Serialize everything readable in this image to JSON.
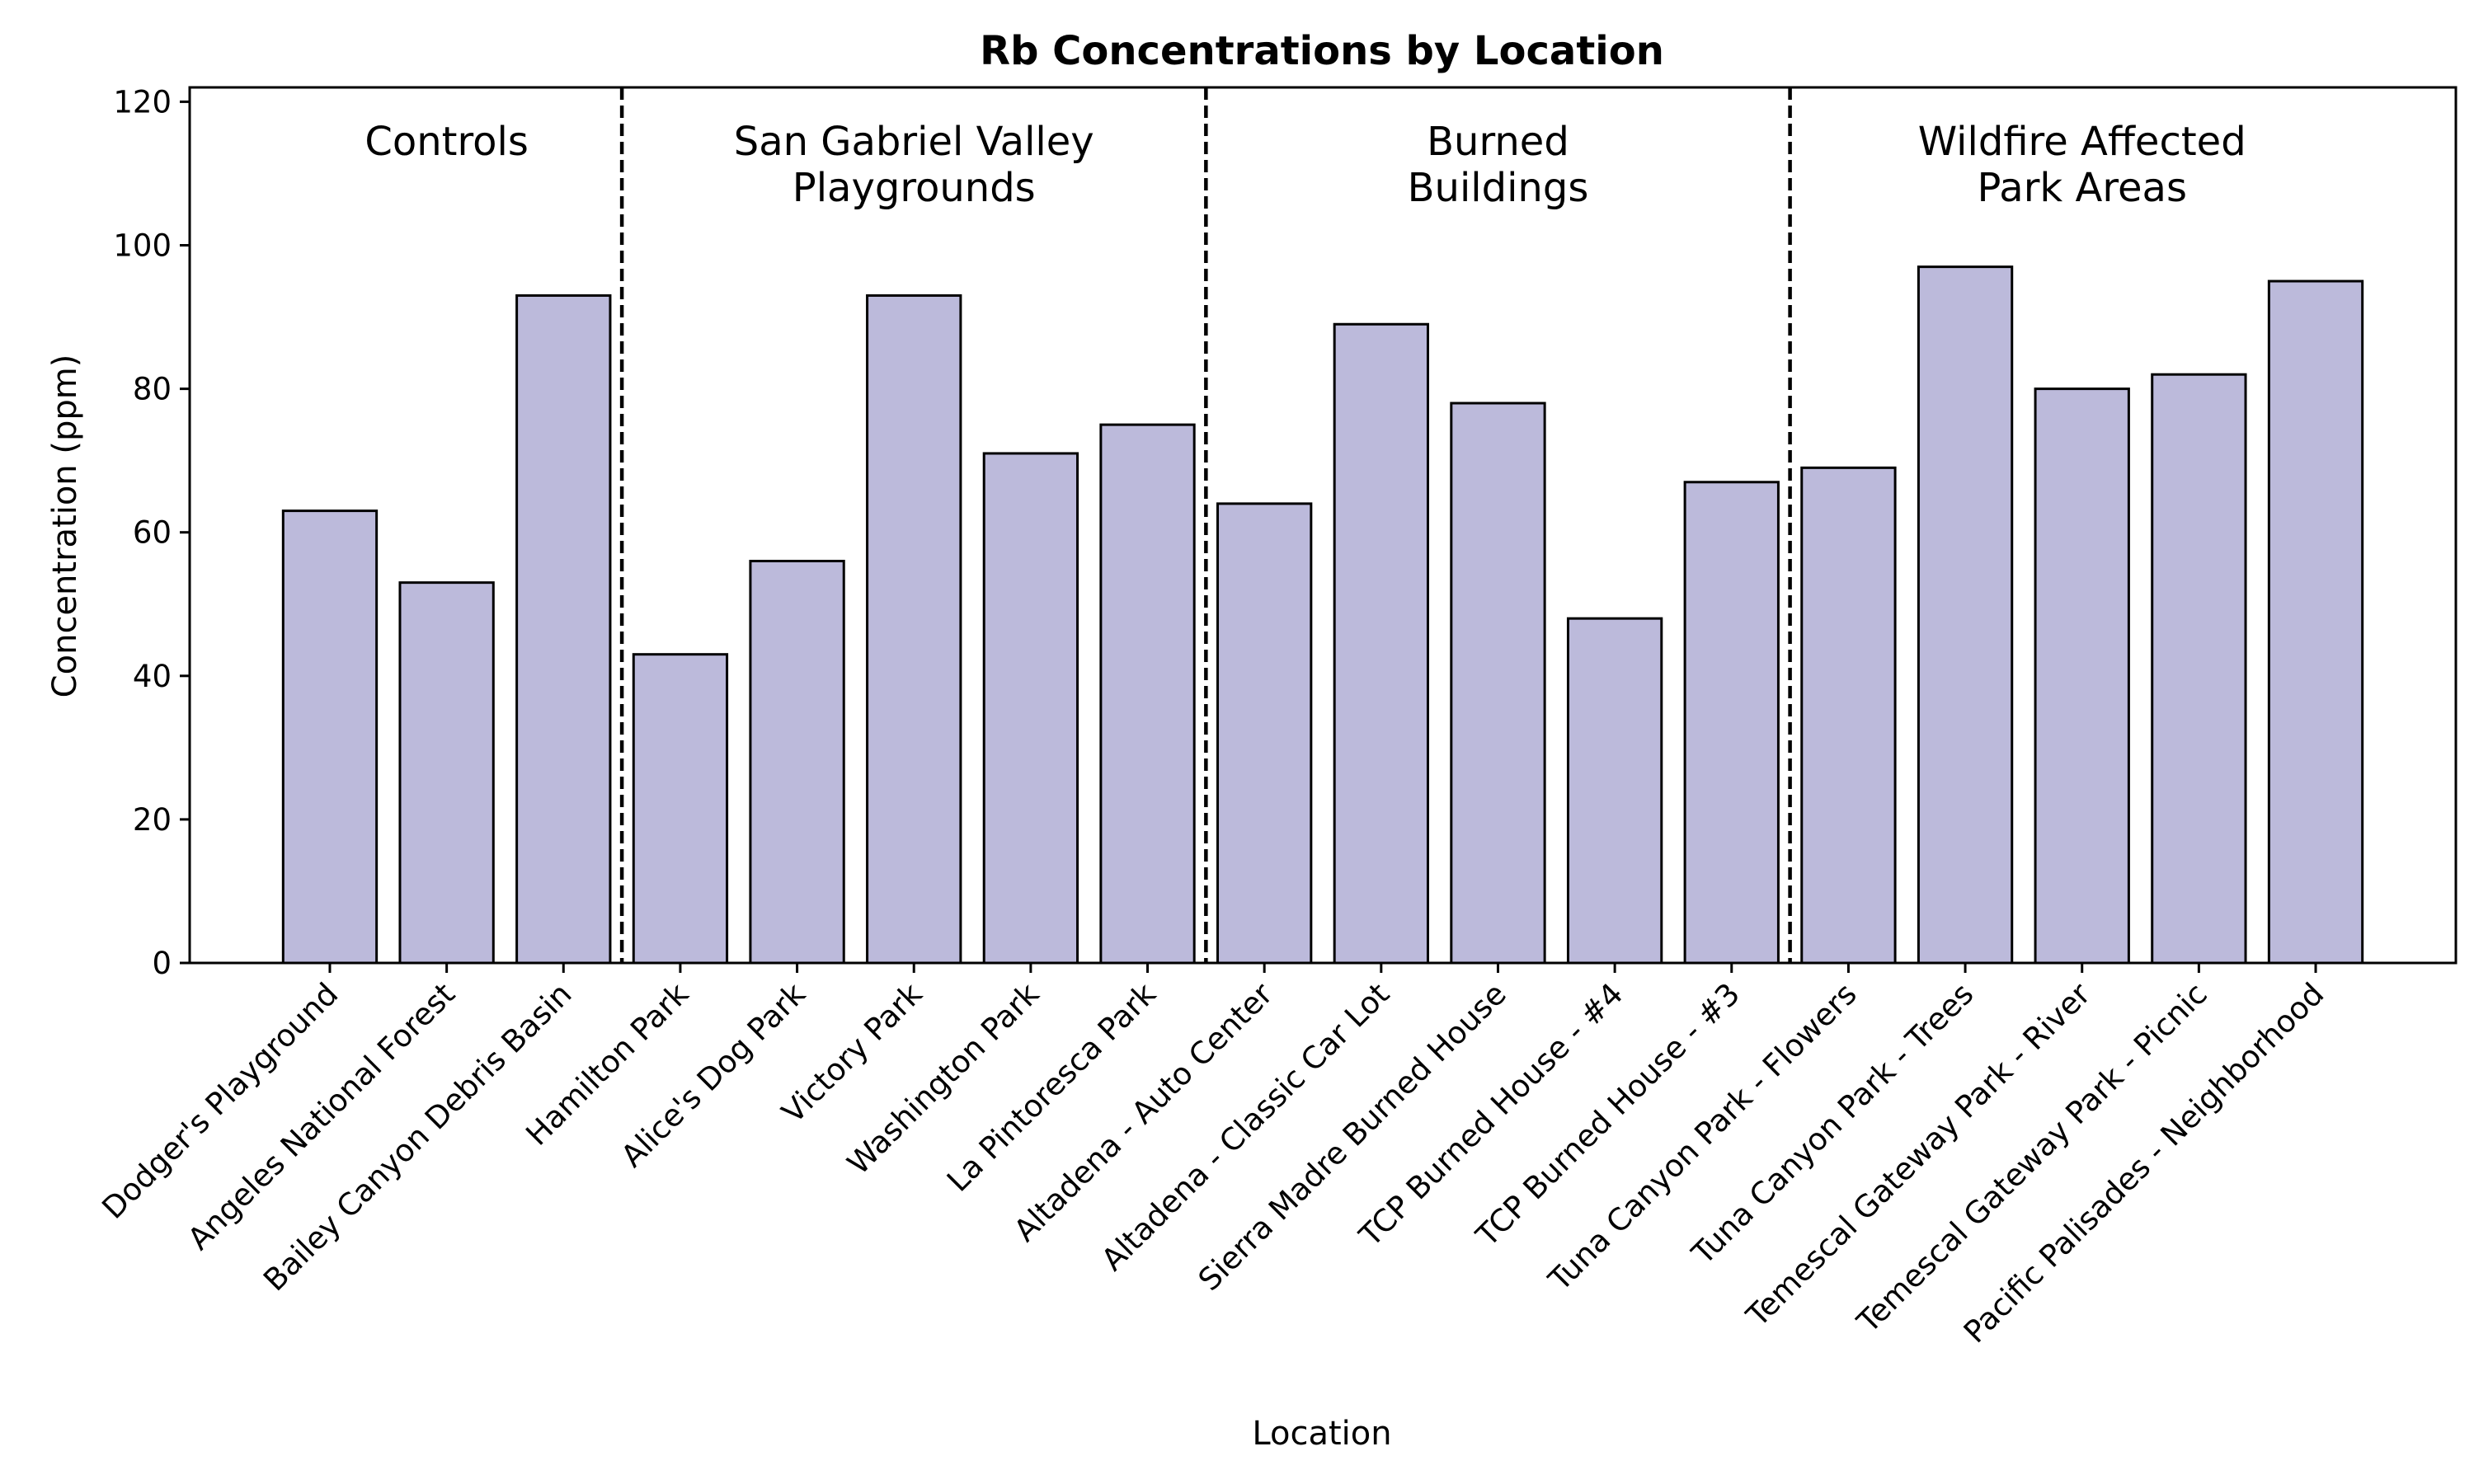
{
  "chart_data": {
    "type": "bar",
    "title": "Rb Concentrations by Location",
    "xlabel": "Location",
    "ylabel": "Concentration (ppm)",
    "ylim": [
      0,
      122
    ],
    "yticks": [
      0,
      20,
      40,
      60,
      80,
      100,
      120
    ],
    "grid": false,
    "bar_color": "#bcbadb",
    "bar_edge_color": "#000000",
    "categories": [
      "Dodger's Playground",
      "Angeles National Forest",
      "Bailey Canyon Debris Basin",
      "Hamilton Park",
      "Alice's Dog Park",
      "Victory Park",
      "Washington Park",
      "La Pintoresca Park",
      "Altadena - Auto Center",
      "Altadena - Classic Car Lot",
      "Sierra Madre Burned House",
      "TCP Burned House - #4",
      "TCP Burned House - #3",
      "Tuna Canyon Park - Flowers",
      "Tuna Canyon Park - Trees",
      "Temescal Gateway Park - River",
      "Temescal Gateway Park - Picnic",
      "Pacific Palisades - Neighborhood"
    ],
    "values": [
      63,
      53,
      93,
      43,
      56,
      93,
      71,
      75,
      64,
      89,
      78,
      48,
      67,
      69,
      97,
      80,
      82,
      95
    ],
    "groups": [
      {
        "label_lines": [
          "Controls"
        ],
        "start": 0,
        "end": 2
      },
      {
        "label_lines": [
          "San Gabriel Valley",
          "Playgrounds"
        ],
        "start": 3,
        "end": 7
      },
      {
        "label_lines": [
          "Burned",
          "Buildings"
        ],
        "start": 8,
        "end": 12
      },
      {
        "label_lines": [
          "Wildfire Affected",
          "Park Areas"
        ],
        "start": 13,
        "end": 17
      }
    ]
  }
}
